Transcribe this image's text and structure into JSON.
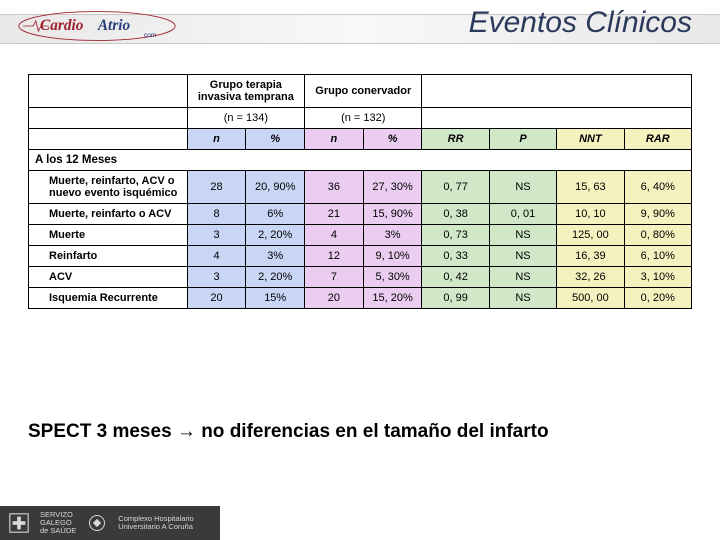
{
  "title": "Eventos Clínicos",
  "logo": {
    "brand_left": "Cardio",
    "brand_right": "Atrio",
    "sub": "com"
  },
  "table": {
    "group_a": "Grupo terapia invasiva temprana",
    "group_b": "Grupo conervador",
    "n_a": "(n = 134)",
    "n_b": "(n = 132)",
    "cols": {
      "n": "n",
      "pct": "%",
      "rr": "RR",
      "p": "P",
      "nnt": "NNT",
      "rar": "RAR"
    },
    "section": "A los 12 Meses",
    "rows": [
      {
        "label": "Muerte, reinfarto, ACV o nuevo evento isquémico",
        "indent": true,
        "na": "28",
        "pa": "20, 90%",
        "nb": "36",
        "pb": "27, 30%",
        "rr": "0, 77",
        "p": "NS",
        "nnt": "15, 63",
        "rar": "6, 40%"
      },
      {
        "label": "Muerte, reinfarto o ACV",
        "indent": true,
        "na": "8",
        "pa": "6%",
        "nb": "21",
        "pb": "15, 90%",
        "rr": "0, 38",
        "p": "0, 01",
        "nnt": "10, 10",
        "rar": "9, 90%"
      },
      {
        "label": "Muerte",
        "indent": true,
        "na": "3",
        "pa": "2, 20%",
        "nb": "4",
        "pb": "3%",
        "rr": "0, 73",
        "p": "NS",
        "nnt": "125, 00",
        "rar": "0, 80%"
      },
      {
        "label": "Reinfarto",
        "indent": true,
        "na": "4",
        "pa": "3%",
        "nb": "12",
        "pb": "9, 10%",
        "rr": "0, 33",
        "p": "NS",
        "nnt": "16, 39",
        "rar": "6, 10%"
      },
      {
        "label": "ACV",
        "indent": true,
        "na": "3",
        "pa": "2, 20%",
        "nb": "7",
        "pb": "5, 30%",
        "rr": "0, 42",
        "p": "NS",
        "nnt": "32, 26",
        "rar": "3, 10%"
      },
      {
        "label": "Isquemia Recurrente",
        "indent": true,
        "na": "20",
        "pa": "15%",
        "nb": "20",
        "pb": "15, 20%",
        "rr": "0, 99",
        "p": "NS",
        "nnt": "500, 00",
        "rar": "0, 20%"
      }
    ],
    "colors": {
      "blue": "#c9d5f5",
      "pink": "#eacdf0",
      "green": "#d0e8c8",
      "yellow": "#f5f2c0"
    }
  },
  "footer_note_a": "SPECT 3 meses ",
  "footer_note_b": " no diferencias en el tamaño del infarto",
  "footer_logos": {
    "org1_l1": "SERVIZO",
    "org1_l2": "GALEGO",
    "org1_l3": "de SAÚDE",
    "org2_l1": "Complexo Hospitalario",
    "org2_l2": "Universitario A Coruña"
  }
}
